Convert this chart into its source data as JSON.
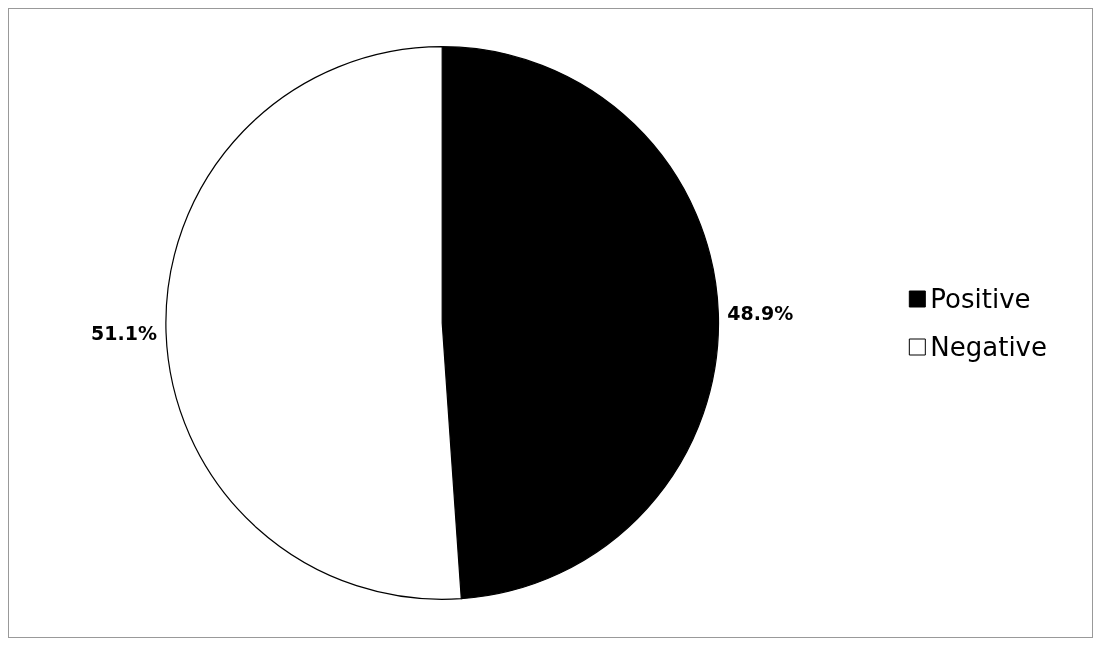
{
  "chart_data": {
    "type": "pie",
    "categories": [
      "Positive",
      "Negative"
    ],
    "values": [
      48.9,
      51.1
    ],
    "colors": [
      "#000000",
      "#ffffff"
    ],
    "value_labels": [
      "48.9%",
      "51.1%"
    ],
    "legend": "right"
  }
}
